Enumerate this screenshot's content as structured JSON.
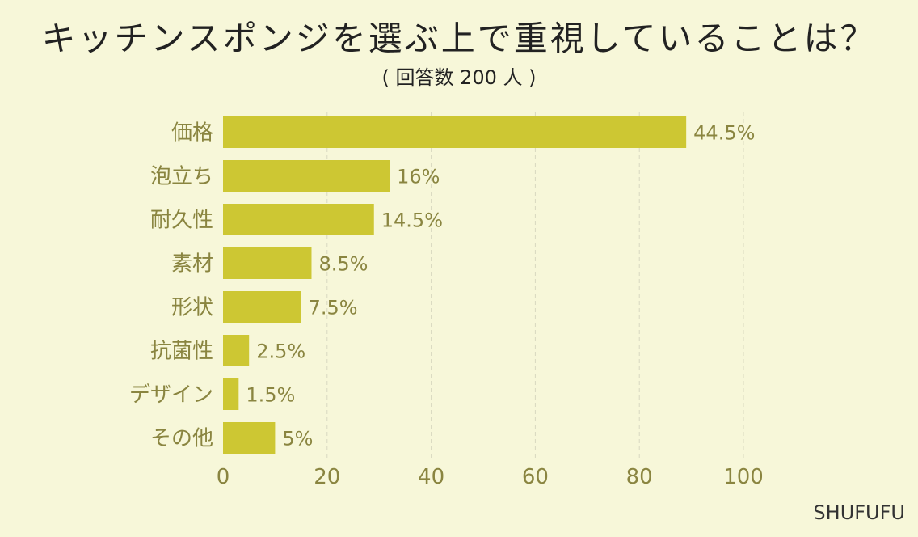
{
  "title": "キッチンスポンジを選ぶ上で重視していることは？",
  "subtitle": "( 回答数 200 人 )",
  "brand": "SHUFUFU",
  "colors": {
    "bar": "#cdc733",
    "background": "#f7f7d9",
    "text": "#8a8540",
    "grid": "#d8d8c0"
  },
  "chart_data": {
    "type": "bar",
    "orientation": "horizontal",
    "categories": [
      "価格",
      "泡立ち",
      "耐久性",
      "素材",
      "形状",
      "抗菌性",
      "デザイン",
      "その他"
    ],
    "values": [
      89,
      32,
      29,
      17,
      15,
      5,
      3,
      10
    ],
    "data_labels": [
      "44.5%",
      "16%",
      "14.5%",
      "8.5%",
      "7.5%",
      "2.5%",
      "1.5%",
      "5%"
    ],
    "xlim": [
      0,
      100
    ],
    "xticks": [
      "0",
      "20",
      "40",
      "60",
      "80",
      "100"
    ],
    "grid": true
  }
}
